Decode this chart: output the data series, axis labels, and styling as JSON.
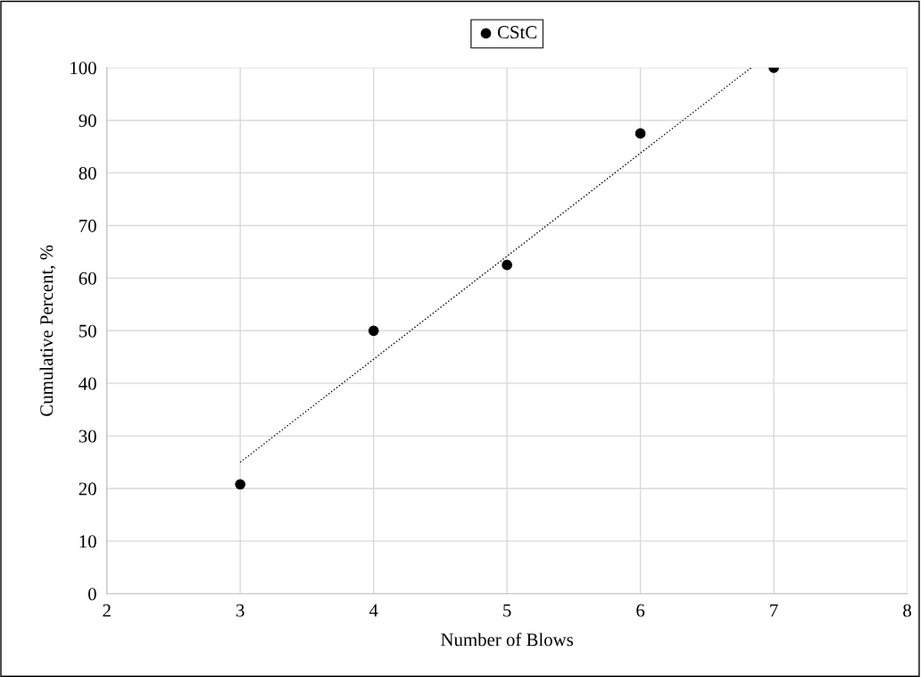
{
  "chart_data": {
    "type": "scatter",
    "xlabel": "Number of Blows",
    "ylabel": "Cumulative Percent, %",
    "xlim": [
      2,
      8
    ],
    "xticks": [
      2,
      3,
      4,
      5,
      6,
      7,
      8
    ],
    "ylim": [
      0,
      100
    ],
    "yticks": [
      0,
      10,
      20,
      30,
      40,
      50,
      60,
      70,
      80,
      90,
      100
    ],
    "grid": true,
    "legend": "top",
    "marker": "circle",
    "series": [
      {
        "name": "CStC",
        "color": "#000000",
        "x": [
          3,
          4,
          5,
          6,
          7
        ],
        "values": [
          20.8,
          50,
          62.5,
          87.5,
          100
        ]
      },
      {
        "type": "line",
        "color": "#000000",
        "line_style": "dotted",
        "marker": "none",
        "x": [
          3,
          6.83
        ],
        "values": [
          25,
          100
        ]
      }
    ]
  }
}
